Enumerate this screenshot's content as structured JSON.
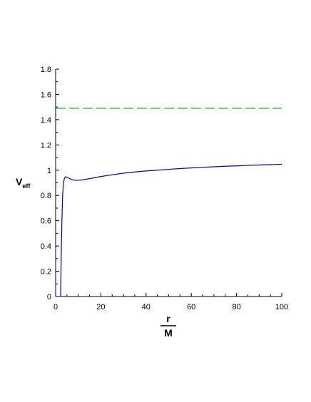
{
  "chart_data": {
    "type": "line",
    "title": "",
    "ylabel_main": "V",
    "ylabel_sub": "eff",
    "xlabel_numerator": "r",
    "xlabel_denominator": "M",
    "xlim": [
      0,
      100
    ],
    "ylim": [
      0,
      1.8
    ],
    "x_ticks": [
      "0",
      "20",
      "40",
      "60",
      "80",
      "100"
    ],
    "y_ticks": [
      "0",
      "0.2",
      "0.4",
      "0.6",
      "0.8",
      "1",
      "1.2",
      "1.4",
      "1.6",
      "1.8"
    ],
    "grid": false,
    "legend": "none",
    "series": [
      {
        "style": "solid",
        "color": "#0000cc",
        "points": [
          [
            2.2,
            0.0
          ],
          [
            2.5,
            0.35
          ],
          [
            2.8,
            0.62
          ],
          [
            3.1,
            0.8
          ],
          [
            3.4,
            0.89
          ],
          [
            3.8,
            0.93
          ],
          [
            4.3,
            0.948
          ],
          [
            5.0,
            0.945
          ],
          [
            6.0,
            0.935
          ],
          [
            7.0,
            0.927
          ],
          [
            8.0,
            0.922
          ],
          [
            9.0,
            0.92
          ],
          [
            10.0,
            0.92
          ],
          [
            12.0,
            0.924
          ],
          [
            15.0,
            0.933
          ],
          [
            20.0,
            0.95
          ],
          [
            25.0,
            0.964
          ],
          [
            30.0,
            0.976
          ],
          [
            35.0,
            0.986
          ],
          [
            40.0,
            0.994
          ],
          [
            45.0,
            1.0
          ],
          [
            50.0,
            1.007
          ],
          [
            55.0,
            1.013
          ],
          [
            60.0,
            1.018
          ],
          [
            65.0,
            1.023
          ],
          [
            70.0,
            1.027
          ],
          [
            75.0,
            1.031
          ],
          [
            80.0,
            1.034
          ],
          [
            85.0,
            1.038
          ],
          [
            90.0,
            1.041
          ],
          [
            95.0,
            1.044
          ],
          [
            100.0,
            1.047
          ]
        ]
      },
      {
        "style": "dashed",
        "color": "#00aa00",
        "points": [
          [
            0,
            1.49
          ],
          [
            100,
            1.49
          ]
        ]
      }
    ]
  }
}
